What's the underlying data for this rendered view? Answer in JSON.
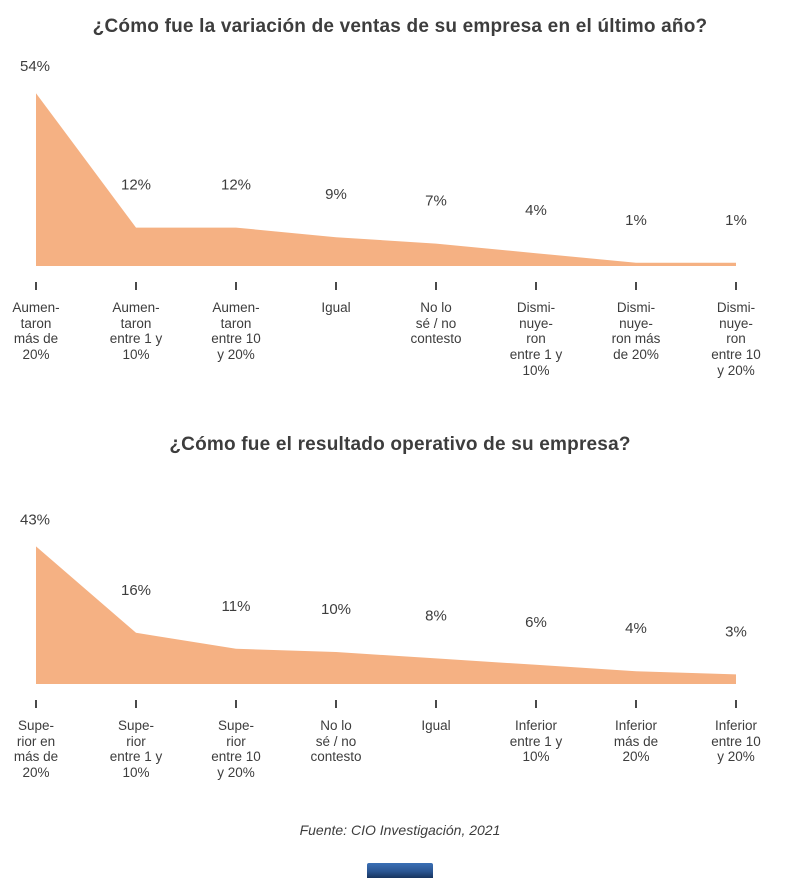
{
  "page": {
    "source_note": "Fuente: CIO Investigación, 2021"
  },
  "colors": {
    "area_fill": "#F5B183",
    "text": "#3d3d3d",
    "tick": "#4a4a4a",
    "logo_blue_top": "#3a6fb5",
    "logo_blue_bottom": "#17355f"
  },
  "chart_data": [
    {
      "type": "area",
      "title": "¿Cómo fue la variación de ventas de su empresa en el último año?",
      "categories": [
        "Aumen-\ntaron\nmás de\n20%",
        "Aumen-\ntaron\nentre 1 y\n10%",
        "Aumen-\ntaron\nentre 10\ny 20%",
        "Igual",
        "No lo\nsé / no\ncontesto",
        "Dismi-\nnuye-\nron\nentre 1 y\n10%",
        "Dismi-\nnuye-\nron más\nde 20%",
        "Dismi-\nnuye-\nron\nentre 10\ny 20%"
      ],
      "values": [
        54,
        12,
        12,
        9,
        7,
        4,
        1,
        1
      ],
      "value_labels": [
        "54%",
        "12%",
        "12%",
        "9%",
        "7%",
        "4%",
        "1%",
        "1%"
      ],
      "xlabel": "",
      "ylabel": "",
      "ylim": [
        0,
        55
      ],
      "grid": false,
      "legend": false
    },
    {
      "type": "area",
      "title": "¿Cómo fue el resultado operativo de su empresa?",
      "categories": [
        "Supe-\nrior en\nmás de\n20%",
        "Supe-\nrior\nentre 1 y\n10%",
        "Supe-\nrior\nentre 10\ny 20%",
        "No lo\nsé / no\ncontesto",
        "Igual",
        "Inferior\nentre 1 y\n10%",
        "Inferior\nmás de\n20%",
        "Inferior\nentre 10\ny 20%"
      ],
      "values": [
        43,
        16,
        11,
        10,
        8,
        6,
        4,
        3
      ],
      "value_labels": [
        "43%",
        "16%",
        "11%",
        "10%",
        "8%",
        "6%",
        "4%",
        "3%"
      ],
      "xlabel": "",
      "ylabel": "",
      "ylim": [
        0,
        55
      ],
      "grid": false,
      "legend": false
    }
  ]
}
